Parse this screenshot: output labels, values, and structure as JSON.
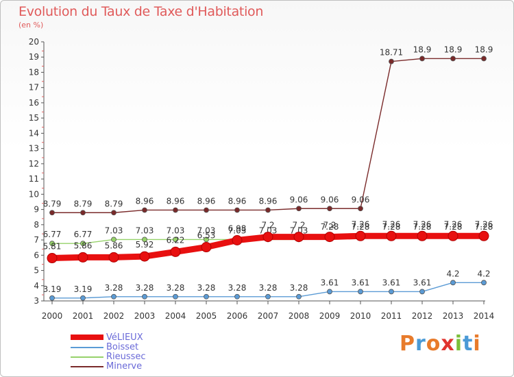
{
  "title": "Evolution du Taux de Taxe d'Habitation",
  "unit": "(en %)",
  "brand": {
    "letters": [
      "P",
      "r",
      "o",
      "x",
      "i",
      "t",
      "i"
    ],
    "colors": [
      "#e87b2b",
      "#4a9ad6",
      "#e87b2b",
      "#e0342f",
      "#7cbf3a",
      "#4a9ad6",
      "#e87b2b"
    ]
  },
  "chart_data": {
    "type": "line",
    "x": [
      "2000",
      "2001",
      "2002",
      "2003",
      "2004",
      "2005",
      "2006",
      "2007",
      "2008",
      "2009",
      "2010",
      "2011",
      "2012",
      "2013",
      "2014"
    ],
    "ylim": [
      3,
      20
    ],
    "yticks": [
      "3",
      "4",
      "5",
      "6",
      "7",
      "8",
      "9",
      "10",
      "11",
      "12",
      "13",
      "14",
      "15",
      "16",
      "17",
      "18",
      "19",
      "20"
    ],
    "grid": false,
    "legend_position": "bottom-left",
    "series": [
      {
        "name": "Minerve",
        "color": "#7a2a2a",
        "values": [
          8.79,
          8.79,
          8.79,
          8.96,
          8.96,
          8.96,
          8.96,
          8.96,
          9.06,
          9.06,
          9.06,
          18.71,
          18.9,
          18.9,
          18.9
        ],
        "labels": [
          "8.79",
          "8.79",
          "8.79",
          "8.96",
          "8.96",
          "8.96",
          "8.96",
          "8.96",
          "9.06",
          "9.06",
          "9.06",
          "18.71",
          "18.9",
          "18.9",
          "18.9"
        ]
      },
      {
        "name": "Rieussec",
        "color": "#96d26a",
        "values": [
          6.77,
          6.77,
          7.03,
          7.03,
          7.03,
          7.03,
          7.03,
          7.03,
          7.03,
          7.28,
          7.28,
          7.28,
          7.28,
          7.28,
          7.28
        ],
        "labels": [
          "6.77",
          "6.77",
          "7.03",
          "7.03",
          "7.03",
          "7.03",
          "7.03",
          "7.03",
          "7.03",
          "7.28",
          "7.28",
          "7.28",
          "7.28",
          "7.28",
          "7.28"
        ]
      },
      {
        "name": "Boisset",
        "color": "#5b9bd5",
        "values": [
          3.19,
          3.19,
          3.28,
          3.28,
          3.28,
          3.28,
          3.28,
          3.28,
          3.28,
          3.61,
          3.61,
          3.61,
          3.61,
          4.2,
          4.2
        ],
        "labels": [
          "3.19",
          "3.19",
          "3.28",
          "3.28",
          "3.28",
          "3.28",
          "3.28",
          "3.28",
          "3.28",
          "3.61",
          "3.61",
          "3.61",
          "3.61",
          "4.2",
          "4.2"
        ]
      },
      {
        "name": "VéLIEUX",
        "color": "#e81010",
        "values": [
          5.81,
          5.86,
          5.86,
          5.92,
          6.22,
          6.53,
          6.98,
          7.2,
          7.2,
          7.2,
          7.26,
          7.26,
          7.26,
          7.26,
          7.26
        ],
        "labels": [
          "5.81",
          "5.86",
          "5.86",
          "5.92",
          "6.22",
          "6.53",
          "6.98",
          "7.2",
          "7.2",
          "7.2",
          "7.26",
          "7.26",
          "7.26",
          "7.26",
          "7.26"
        ]
      }
    ]
  }
}
